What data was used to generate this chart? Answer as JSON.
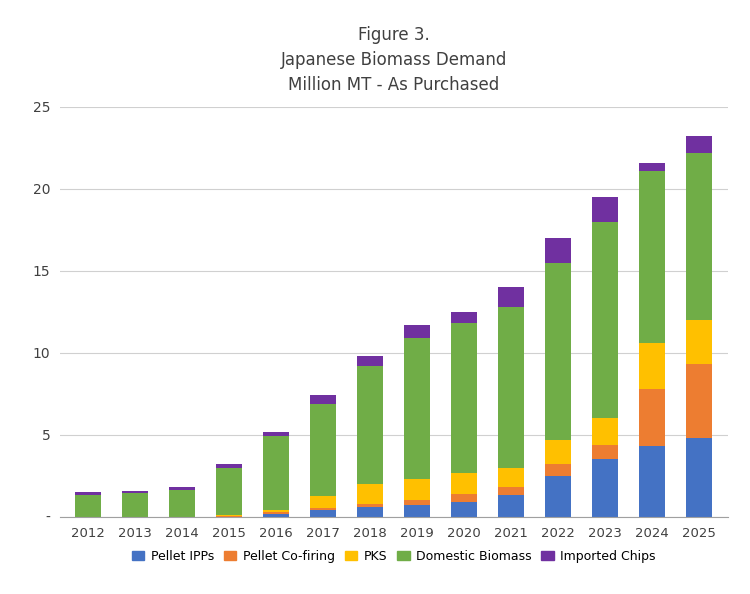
{
  "years": [
    2012,
    2013,
    2014,
    2015,
    2016,
    2017,
    2018,
    2019,
    2020,
    2021,
    2022,
    2023,
    2024,
    2025
  ],
  "title_line1": "Figure 3.",
  "title_line2": "Japanese Biomass Demand",
  "title_line3": "Million MT - As Purchased",
  "pellet_ipps": [
    0.0,
    0.0,
    0.0,
    0.0,
    0.2,
    0.4,
    0.6,
    0.7,
    0.9,
    1.3,
    2.5,
    3.5,
    4.3,
    4.8
  ],
  "pellet_cofiring": [
    0.0,
    0.0,
    0.0,
    0.05,
    0.1,
    0.15,
    0.2,
    0.3,
    0.5,
    0.5,
    0.7,
    0.9,
    3.5,
    4.5
  ],
  "pks": [
    0.0,
    0.0,
    0.0,
    0.05,
    0.1,
    0.7,
    1.2,
    1.3,
    1.3,
    1.2,
    1.5,
    1.6,
    2.8,
    2.7
  ],
  "domestic_biomass": [
    1.35,
    1.45,
    1.65,
    2.85,
    4.55,
    5.6,
    7.2,
    8.6,
    9.1,
    9.8,
    10.8,
    12.0,
    10.5,
    10.2
  ],
  "imported_chips": [
    0.15,
    0.15,
    0.15,
    0.25,
    0.25,
    0.6,
    0.6,
    0.8,
    0.7,
    1.2,
    1.5,
    1.5,
    0.5,
    1.0
  ],
  "colors": {
    "pellet_ipps": "#4472C4",
    "pellet_cofiring": "#ED7D31",
    "pks": "#FFC000",
    "domestic_biomass": "#70AD47",
    "imported_chips": "#7030A0"
  },
  "ylim": [
    0,
    25
  ],
  "yticks": [
    0,
    5,
    10,
    15,
    20,
    25
  ],
  "background_color": "#FFFFFF",
  "bar_width": 0.55,
  "figsize": [
    7.5,
    5.94
  ],
  "dpi": 100
}
